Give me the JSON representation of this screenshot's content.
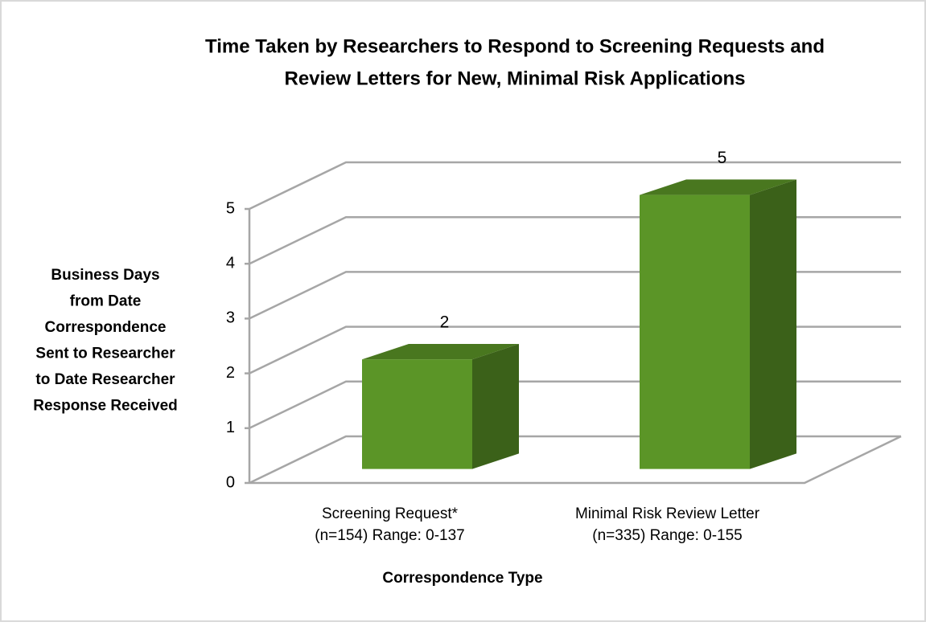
{
  "chart_data": {
    "type": "bar3d",
    "title": [
      "Time Taken by Researchers to Respond to Screening Requests and",
      "Review Letters for New, Minimal Risk Applications"
    ],
    "ylabel": [
      "Business Days",
      "from Date",
      "Correspondence",
      "Sent to Researcher",
      "to Date Researcher",
      "Response Received"
    ],
    "xlabel": "Correspondence Type",
    "categories": [
      [
        "Screening Request*",
        "(n=154) Range: 0-137"
      ],
      [
        "Minimal Risk Review Letter",
        "(n=335) Range: 0-155"
      ]
    ],
    "values": [
      2,
      5
    ],
    "color": "#5b9527",
    "ylim": [
      0,
      5
    ],
    "yticks": [
      0,
      1,
      2,
      3,
      4,
      5
    ],
    "grid": true
  }
}
